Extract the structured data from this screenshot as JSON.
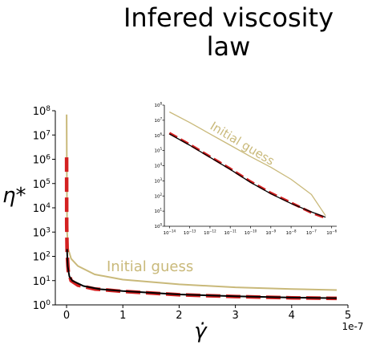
{
  "title": "Infered viscosity law",
  "chart_data": [
    {
      "type": "line",
      "panel": "main",
      "xlabel": "γ̇",
      "ylabel": "η*",
      "x_offset_label": "1e-7",
      "xlim": [
        -0.2,
        5.0
      ],
      "ylim_log10": [
        0,
        8
      ],
      "x_ticks": [
        "0",
        "1",
        "2",
        "3",
        "4",
        "5"
      ],
      "y_ticks": [
        {
          "base": "10",
          "exp": "0"
        },
        {
          "base": "10",
          "exp": "1"
        },
        {
          "base": "10",
          "exp": "2"
        },
        {
          "base": "10",
          "exp": "3"
        },
        {
          "base": "10",
          "exp": "4"
        },
        {
          "base": "10",
          "exp": "5"
        },
        {
          "base": "10",
          "exp": "6"
        },
        {
          "base": "10",
          "exp": "7"
        },
        {
          "base": "10",
          "exp": "8"
        }
      ],
      "annotation": "Initial guess",
      "series": [
        {
          "color": "#c9b97a",
          "style": "solid",
          "x": [
            0.0005,
            0.01,
            0.03,
            0.08,
            0.2,
            0.5,
            1,
            2,
            3,
            4,
            4.8
          ],
          "y": [
            70000000,
            1000,
            200,
            80,
            40,
            18,
            11,
            7,
            5.3,
            4.5,
            4.1
          ]
        },
        {
          "color": "#d42020",
          "style": "dashed",
          "x": [
            0.0008,
            0.003,
            0.01,
            0.03,
            0.08,
            0.2,
            0.5,
            1,
            2,
            3,
            4,
            4.8
          ],
          "y": [
            1200000,
            2000,
            150,
            25,
            10,
            6.5,
            4.5,
            3.6,
            2.6,
            2.2,
            1.95,
            1.85
          ]
        },
        {
          "color": "#000000",
          "style": "solid",
          "x": [
            0.008,
            0.02,
            0.05,
            0.1,
            0.3,
            0.6,
            1,
            2,
            3,
            4,
            4.8
          ],
          "y": [
            200,
            40,
            15,
            10,
            6,
            4.4,
            3.7,
            2.7,
            2.25,
            2,
            1.9
          ]
        }
      ]
    },
    {
      "type": "line",
      "panel": "inset",
      "xscale": "log",
      "yscale": "log",
      "xlim_log10": [
        -14.25,
        -5.75
      ],
      "ylim_log10": [
        0,
        8
      ],
      "x_ticks": [
        {
          "base": "10",
          "exp": "−14"
        },
        {
          "base": "10",
          "exp": "−13"
        },
        {
          "base": "10",
          "exp": "−12"
        },
        {
          "base": "10",
          "exp": "−11"
        },
        {
          "base": "10",
          "exp": "−10"
        },
        {
          "base": "10",
          "exp": "−9"
        },
        {
          "base": "10",
          "exp": "−8"
        },
        {
          "base": "10",
          "exp": "−7"
        },
        {
          "base": "10",
          "exp": "−6"
        }
      ],
      "y_ticks": [
        {
          "base": "10",
          "exp": "0"
        },
        {
          "base": "10",
          "exp": "1"
        },
        {
          "base": "10",
          "exp": "2"
        },
        {
          "base": "10",
          "exp": "3"
        },
        {
          "base": "10",
          "exp": "4"
        },
        {
          "base": "10",
          "exp": "5"
        },
        {
          "base": "10",
          "exp": "6"
        },
        {
          "base": "10",
          "exp": "7"
        },
        {
          "base": "10",
          "exp": "8"
        }
      ],
      "annotation": "Initial guess",
      "series": [
        {
          "color": "#c9b97a",
          "style": "solid",
          "x_log10": [
            -14,
            -13,
            -12,
            -11,
            -10,
            -9,
            -8,
            -7,
            -6.3
          ],
          "y_log10": [
            7.55,
            6.85,
            6.1,
            5.35,
            4.6,
            3.9,
            3.1,
            2.1,
            0.7
          ]
        },
        {
          "color": "#d42020",
          "style": "dashed",
          "x_log10": [
            -14,
            -13,
            -12,
            -11,
            -10,
            -9,
            -8,
            -7,
            -6.3
          ],
          "y_log10": [
            6.15,
            5.4,
            4.6,
            3.8,
            2.95,
            2.2,
            1.55,
            0.9,
            0.55
          ]
        },
        {
          "color": "#000000",
          "style": "solid",
          "x_log10": [
            -14,
            -13,
            -12,
            -11,
            -10,
            -9,
            -8,
            -7,
            -6.3
          ],
          "y_log10": [
            6.1,
            5.35,
            4.55,
            3.75,
            2.9,
            2.15,
            1.5,
            0.95,
            0.6
          ]
        }
      ]
    }
  ]
}
